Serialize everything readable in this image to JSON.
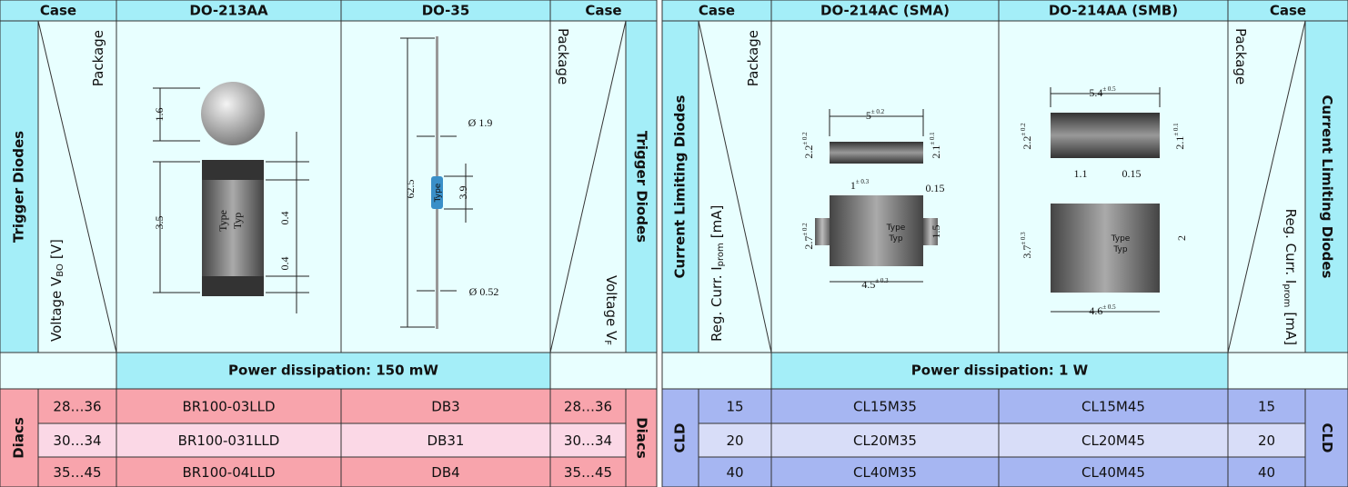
{
  "left": {
    "header": [
      "Case",
      "DO-213AA",
      "DO-35",
      "Case"
    ],
    "side_label": "Trigger Diodes",
    "diag_left": {
      "top": "Package",
      "bottom": {
        "text": "Voltage V",
        "sub": "BO",
        "unit": "[V]"
      }
    },
    "diag_right": {
      "top": "Package",
      "bottom": {
        "text": "Voltage V",
        "sub": "F"
      }
    },
    "drawings": [
      {
        "labels": [
          "1.6",
          "3.5",
          "0.4",
          "0.4",
          "Type",
          "Typ"
        ]
      },
      {
        "labels": [
          "62.5",
          "Ø 1.9",
          "3.9",
          "Ø 0.52",
          "Type"
        ]
      }
    ],
    "power": "Power dissipation: 150 mW",
    "group": "Diacs",
    "rows": [
      [
        "28…36",
        "BR100-03LLD",
        "DB3",
        "28…36"
      ],
      [
        "30…34",
        "BR100-031LLD",
        "DB31",
        "30…34"
      ],
      [
        "35…45",
        "BR100-04LLD",
        "DB4",
        "35…45"
      ]
    ]
  },
  "right": {
    "header": [
      "Case",
      "DO-214AC (SMA)",
      "DO-214AA (SMB)",
      "Case"
    ],
    "side_label": "Current Limiting Diodes",
    "diag_left": {
      "top": "Package",
      "bottom": {
        "text": "Reg. Curr. I",
        "sub": "prom",
        "unit": "[mA]"
      }
    },
    "diag_right": {
      "top": "Package",
      "bottom": {
        "text": "Reg. Curr. I",
        "sub": "prom",
        "unit": "[mA]"
      }
    },
    "drawings": [
      {
        "labels": [
          {
            "text": "5",
            "sup": "± 0.2"
          },
          {
            "text": "2.2",
            "sup": "± 0.2"
          },
          {
            "text": "2.1",
            "sup": "± 0.1"
          },
          {
            "text": "1",
            "sup": "± 0.3"
          },
          "0.15",
          {
            "text": "2.7",
            "sup": "± 0.2"
          },
          "1.5",
          {
            "text": "4.5",
            "sup": "± 0.3"
          },
          "Type",
          "Typ"
        ]
      },
      {
        "labels": [
          {
            "text": "5.4",
            "sup": "± 0.5"
          },
          {
            "text": "2.2",
            "sup": "± 0.2"
          },
          {
            "text": "2.1",
            "sup": "± 0.1"
          },
          "1.1",
          "0.15",
          {
            "text": "3.7",
            "sup": "± 0.3"
          },
          "2",
          {
            "text": "4.6",
            "sup": "± 0.5"
          },
          "Type",
          "Typ"
        ]
      }
    ],
    "power": "Power dissipation: 1 W",
    "group": "CLD",
    "rows": [
      [
        "15",
        "CL15M35",
        "CL15M45",
        "15"
      ],
      [
        "20",
        "CL20M35",
        "CL20M45",
        "20"
      ],
      [
        "40",
        "CL40M35",
        "CL40M45",
        "40"
      ]
    ]
  }
}
